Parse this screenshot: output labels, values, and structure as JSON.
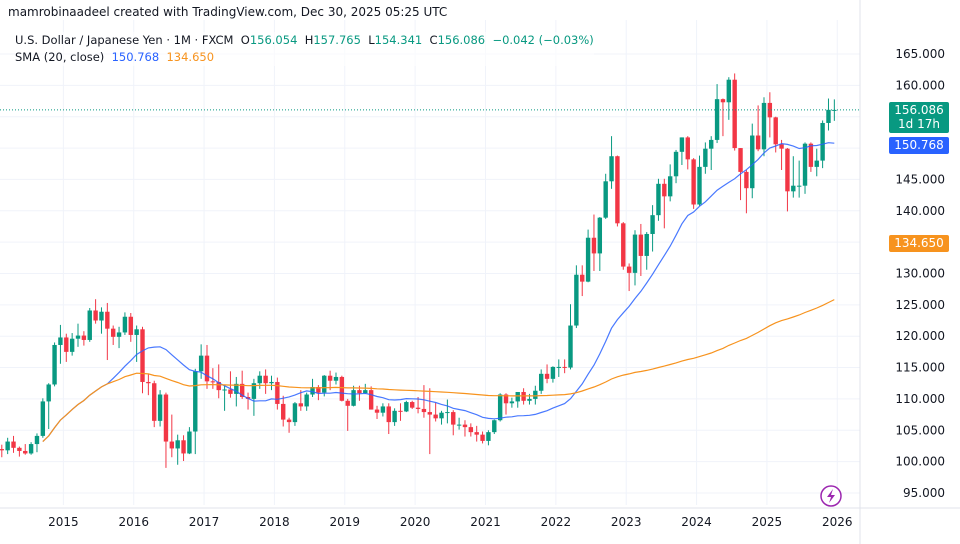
{
  "credit": "mamrobinaadeel created with TradingView.com, Dec 30, 2025 05:25 UTC",
  "legend": {
    "symbol": "U.S. Dollar / Japanese Yen · 1M · FXCM",
    "o_label": "O",
    "o": "156.054",
    "h_label": "H",
    "h": "157.765",
    "l_label": "L",
    "l": "154.341",
    "c_label": "C",
    "c": "156.086",
    "change": "−0.042 (−0.03%)",
    "sma_label": "SMA (20, close)",
    "sma_fast": "150.768",
    "sma_slow": "134.650"
  },
  "price_labels": {
    "last": "156.086",
    "countdown": "1d 17h",
    "sma_fast": "150.768",
    "sma_slow": "134.650"
  },
  "colors": {
    "up": "#089981",
    "down": "#f23645",
    "sma_fast": "#2962ff",
    "sma_slow": "#f7931e",
    "last_bg": "#089981",
    "fast_bg": "#2962ff",
    "slow_bg": "#f7931e"
  },
  "chart_data": {
    "type": "candlestick",
    "interval": "1M",
    "start": "2014-01",
    "y_ticks": [
      95,
      100,
      105,
      110,
      115,
      120,
      125,
      130,
      135,
      140,
      145,
      150,
      155,
      160,
      165
    ],
    "ylim": [
      93,
      167
    ],
    "x_ticks": [
      "2015",
      "2016",
      "2017",
      "2018",
      "2019",
      "2020",
      "2021",
      "2022",
      "2023",
      "2024",
      "2025",
      "2026"
    ],
    "grid": true,
    "candles": [
      [
        105.3,
        105.4,
        100.8,
        102.0
      ],
      [
        102.0,
        102.7,
        100.7,
        101.8
      ],
      [
        101.8,
        103.8,
        101.2,
        103.2
      ],
      [
        103.2,
        104.1,
        101.4,
        102.2
      ],
      [
        102.2,
        102.4,
        100.8,
        101.7
      ],
      [
        101.7,
        102.8,
        101.1,
        101.3
      ],
      [
        101.3,
        103.1,
        101.1,
        102.8
      ],
      [
        102.8,
        104.5,
        101.5,
        104.1
      ],
      [
        104.1,
        110.1,
        103.8,
        109.6
      ],
      [
        109.6,
        112.5,
        105.2,
        112.3
      ],
      [
        112.3,
        119.0,
        112.0,
        118.6
      ],
      [
        118.6,
        121.8,
        115.6,
        119.8
      ],
      [
        119.8,
        120.4,
        115.9,
        117.5
      ],
      [
        117.5,
        120.5,
        116.9,
        119.6
      ],
      [
        119.6,
        122.0,
        118.3,
        120.1
      ],
      [
        120.1,
        120.8,
        118.5,
        119.4
      ],
      [
        119.4,
        124.5,
        119.1,
        124.1
      ],
      [
        124.1,
        125.9,
        122.0,
        122.5
      ],
      [
        122.5,
        124.6,
        120.4,
        123.9
      ],
      [
        123.9,
        125.3,
        116.2,
        121.2
      ],
      [
        121.2,
        121.7,
        118.6,
        119.9
      ],
      [
        119.9,
        121.5,
        118.1,
        120.6
      ],
      [
        120.6,
        123.8,
        120.2,
        123.1
      ],
      [
        123.1,
        123.7,
        119.1,
        120.2
      ],
      [
        120.2,
        121.7,
        115.9,
        121.1
      ],
      [
        121.1,
        121.5,
        110.9,
        112.7
      ],
      [
        112.7,
        114.0,
        110.6,
        112.5
      ],
      [
        112.5,
        112.9,
        105.5,
        106.5
      ],
      [
        106.5,
        111.4,
        105.6,
        110.7
      ],
      [
        110.7,
        111.0,
        99.0,
        103.2
      ],
      [
        103.2,
        107.5,
        100.7,
        102.1
      ],
      [
        102.1,
        104.3,
        99.5,
        103.4
      ],
      [
        103.4,
        104.2,
        100.1,
        101.3
      ],
      [
        101.3,
        105.5,
        101.2,
        104.8
      ],
      [
        104.8,
        114.8,
        101.2,
        114.4
      ],
      [
        114.4,
        118.7,
        113.2,
        116.9
      ],
      [
        116.9,
        118.6,
        111.6,
        112.8
      ],
      [
        112.8,
        114.9,
        111.6,
        112.7
      ],
      [
        112.7,
        115.5,
        110.1,
        111.4
      ],
      [
        111.4,
        112.2,
        108.1,
        111.5
      ],
      [
        111.5,
        114.4,
        110.2,
        110.8
      ],
      [
        110.8,
        113.5,
        108.8,
        112.4
      ],
      [
        112.4,
        114.5,
        110.0,
        110.3
      ],
      [
        110.3,
        111.0,
        108.3,
        110.0
      ],
      [
        110.0,
        113.2,
        107.3,
        112.5
      ],
      [
        112.5,
        114.4,
        111.6,
        113.7
      ],
      [
        113.7,
        114.7,
        110.8,
        112.5
      ],
      [
        112.5,
        113.7,
        111.4,
        112.7
      ],
      [
        112.7,
        113.4,
        108.3,
        109.2
      ],
      [
        109.2,
        110.5,
        105.6,
        106.7
      ],
      [
        106.7,
        107.0,
        104.6,
        106.3
      ],
      [
        106.3,
        109.5,
        105.7,
        109.3
      ],
      [
        109.3,
        111.4,
        108.1,
        108.8
      ],
      [
        108.8,
        111.0,
        108.1,
        110.7
      ],
      [
        110.7,
        113.2,
        110.3,
        111.9
      ],
      [
        111.9,
        112.2,
        109.8,
        111.0
      ],
      [
        111.0,
        113.8,
        110.4,
        113.7
      ],
      [
        113.7,
        114.5,
        111.4,
        112.9
      ],
      [
        112.9,
        114.2,
        112.3,
        113.5
      ],
      [
        113.5,
        113.7,
        109.6,
        109.7
      ],
      [
        109.7,
        110.0,
        104.9,
        108.9
      ],
      [
        108.9,
        112.1,
        108.8,
        111.4
      ],
      [
        111.4,
        112.1,
        109.7,
        110.9
      ],
      [
        110.9,
        112.4,
        110.8,
        111.4
      ],
      [
        111.4,
        112.0,
        108.3,
        108.3
      ],
      [
        108.3,
        108.9,
        106.8,
        107.8
      ],
      [
        107.8,
        109.3,
        107.2,
        108.8
      ],
      [
        108.8,
        109.3,
        104.4,
        106.3
      ],
      [
        106.3,
        108.5,
        105.7,
        108.1
      ],
      [
        108.1,
        109.3,
        106.5,
        108.0
      ],
      [
        108.0,
        109.7,
        107.9,
        109.5
      ],
      [
        109.5,
        109.7,
        108.4,
        108.6
      ],
      [
        108.6,
        110.3,
        107.7,
        108.4
      ],
      [
        108.4,
        112.2,
        107.0,
        107.9
      ],
      [
        107.9,
        111.7,
        101.2,
        107.5
      ],
      [
        107.5,
        109.4,
        106.4,
        106.9
      ],
      [
        106.9,
        108.1,
        105.9,
        107.8
      ],
      [
        107.8,
        109.9,
        106.1,
        107.9
      ],
      [
        107.9,
        108.2,
        104.2,
        105.9
      ],
      [
        105.9,
        107.0,
        105.1,
        105.9
      ],
      [
        105.9,
        106.6,
        104.0,
        105.5
      ],
      [
        105.5,
        106.1,
        104.0,
        104.7
      ],
      [
        104.7,
        105.7,
        103.2,
        104.3
      ],
      [
        104.3,
        104.8,
        102.9,
        103.3
      ],
      [
        103.3,
        105.0,
        102.6,
        104.7
      ],
      [
        104.7,
        106.7,
        104.4,
        106.6
      ],
      [
        106.6,
        110.9,
        106.4,
        110.7
      ],
      [
        110.7,
        110.9,
        107.5,
        109.3
      ],
      [
        109.3,
        110.2,
        108.6,
        109.6
      ],
      [
        109.6,
        111.1,
        108.6,
        111.1
      ],
      [
        111.1,
        111.7,
        109.1,
        109.7
      ],
      [
        109.7,
        110.8,
        109.1,
        110.0
      ],
      [
        110.0,
        112.1,
        109.1,
        111.3
      ],
      [
        111.3,
        114.7,
        110.8,
        114.0
      ],
      [
        114.0,
        115.5,
        112.5,
        113.2
      ],
      [
        113.2,
        115.2,
        112.6,
        115.1
      ],
      [
        115.1,
        116.3,
        113.5,
        115.1
      ],
      [
        115.1,
        116.3,
        114.1,
        115.0
      ],
      [
        115.0,
        125.1,
        114.7,
        121.7
      ],
      [
        121.7,
        131.3,
        121.3,
        129.8
      ],
      [
        129.8,
        131.3,
        126.4,
        128.7
      ],
      [
        128.7,
        137.0,
        128.6,
        135.7
      ],
      [
        135.7,
        139.4,
        130.4,
        133.2
      ],
      [
        133.2,
        139.0,
        130.4,
        138.9
      ],
      [
        138.9,
        145.9,
        138.7,
        144.7
      ],
      [
        144.7,
        151.9,
        143.5,
        148.7
      ],
      [
        148.7,
        148.8,
        137.5,
        138.0
      ],
      [
        138.0,
        138.2,
        130.6,
        131.1
      ],
      [
        131.1,
        131.6,
        127.2,
        130.1
      ],
      [
        130.1,
        136.9,
        128.1,
        136.2
      ],
      [
        136.2,
        137.9,
        129.6,
        132.8
      ],
      [
        132.8,
        136.6,
        130.6,
        136.3
      ],
      [
        136.3,
        140.9,
        133.5,
        139.3
      ],
      [
        139.3,
        145.1,
        138.4,
        144.3
      ],
      [
        144.3,
        145.1,
        137.2,
        142.3
      ],
      [
        142.3,
        147.4,
        141.5,
        145.5
      ],
      [
        145.5,
        149.7,
        144.4,
        149.4
      ],
      [
        149.4,
        151.7,
        147.3,
        151.7
      ],
      [
        151.7,
        151.9,
        146.6,
        148.2
      ],
      [
        148.2,
        148.4,
        140.3,
        141.0
      ],
      [
        141.0,
        148.8,
        140.8,
        147.0
      ],
      [
        147.0,
        150.9,
        145.9,
        149.9
      ],
      [
        149.9,
        151.9,
        146.5,
        151.3
      ],
      [
        151.3,
        160.2,
        150.8,
        157.8
      ],
      [
        157.8,
        157.9,
        151.9,
        157.3
      ],
      [
        157.3,
        161.3,
        154.5,
        160.9
      ],
      [
        160.9,
        161.9,
        149.6,
        150.0
      ],
      [
        150.0,
        150.0,
        141.7,
        146.2
      ],
      [
        146.2,
        146.5,
        139.6,
        143.6
      ],
      [
        143.6,
        153.9,
        142.0,
        152.0
      ],
      [
        152.0,
        156.8,
        149.5,
        149.8
      ],
      [
        149.8,
        158.1,
        148.7,
        157.2
      ],
      [
        157.2,
        158.9,
        151.7,
        154.9
      ],
      [
        154.9,
        155.0,
        149.3,
        150.6
      ],
      [
        150.6,
        151.3,
        146.5,
        149.9
      ],
      [
        149.9,
        150.0,
        139.9,
        143.1
      ],
      [
        143.1,
        148.7,
        142.1,
        144.0
      ],
      [
        144.0,
        148.0,
        142.1,
        144.0
      ],
      [
        144.0,
        150.9,
        142.7,
        150.7
      ],
      [
        150.7,
        150.9,
        146.2,
        147.0
      ],
      [
        147.0,
        149.9,
        145.5,
        148.0
      ],
      [
        148.0,
        154.4,
        146.8,
        154.0
      ],
      [
        154.0,
        157.9,
        152.8,
        156.1
      ],
      [
        156.054,
        157.765,
        154.341,
        156.086
      ]
    ]
  }
}
